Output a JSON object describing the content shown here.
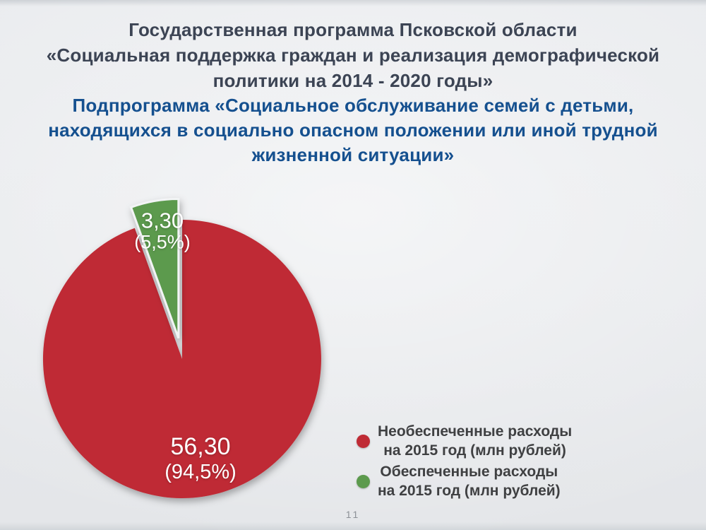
{
  "slide": {
    "title_lines": [
      "Государственная программа Псковской области",
      "«Социальная поддержка граждан и реализация демографической",
      "политики на 2014 - 2020 годы»"
    ],
    "subtitle_lines": [
      "Подпрограмма «Социальное обслуживание семей с детьми,",
      "находящихся в социально опасном положении или иной трудной",
      "жизненной ситуации»"
    ],
    "page_number": "11"
  },
  "colors": {
    "title": "#3c4454",
    "subtitle": "#15508f",
    "red": "#bf2b35",
    "green": "#5c9a4d",
    "legend_text": "#3f4042",
    "background": "#e7e9ec"
  },
  "chart_data": {
    "type": "pie",
    "title": "",
    "start_angle_deg": 0,
    "direction": "clockwise",
    "legend_position": "right",
    "slices": [
      {
        "label": "Необеспеченные расходы на 2015 год (млн рублей)",
        "value": 56.3,
        "percent": 94.5,
        "value_label": "56,30",
        "percent_label": "(94,5%)",
        "color": "#bf2b35",
        "exploded": false
      },
      {
        "label": "Обеспеченные расходы на 2015 год (млн рублей)",
        "value": 3.3,
        "percent": 5.5,
        "value_label": "3,30",
        "percent_label": "(5,5%)",
        "color": "#5c9a4d",
        "exploded": true
      }
    ]
  },
  "legend": {
    "items": [
      {
        "color": "#bf2b35",
        "lines": [
          "Необеспеченные расходы",
          "на 2015 год  (млн рублей)"
        ]
      },
      {
        "color": "#5c9a4d",
        "lines": [
          "Обеспеченные расходы",
          "на 2015 год (млн рублей)"
        ]
      }
    ]
  }
}
